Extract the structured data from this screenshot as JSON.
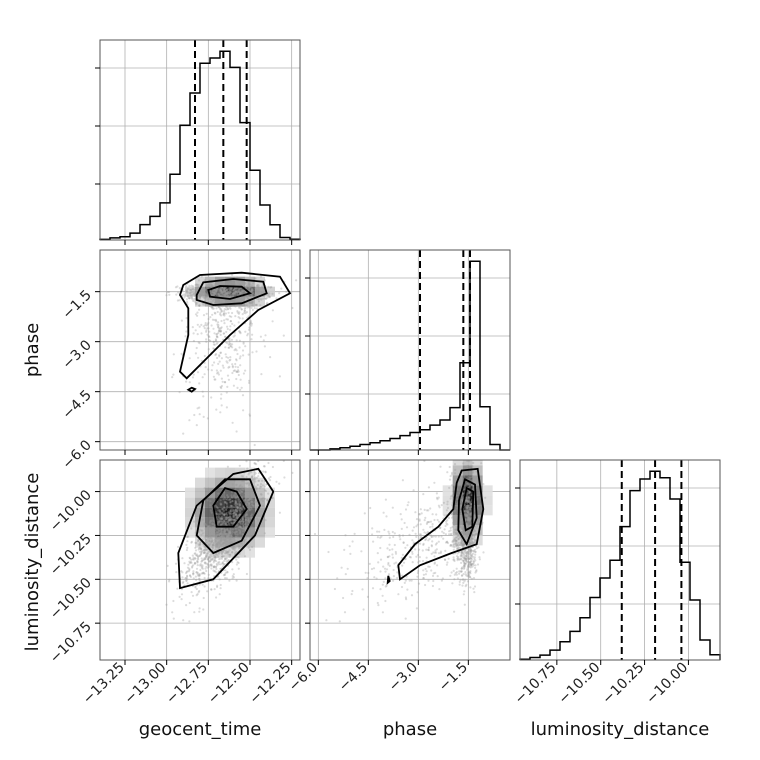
{
  "chart_data": {
    "type": "corner",
    "parameters": [
      "geocent_time",
      "phase",
      "luminosity_distance"
    ],
    "ranges": {
      "geocent_time": [
        -13.4,
        -12.2
      ],
      "phase": [
        -6.25,
        -0.25
      ],
      "luminosity_distance": [
        -10.96,
        -9.82
      ]
    },
    "ticks": {
      "geocent_time": [
        -13.25,
        -13.0,
        -12.75,
        -12.5,
        -12.25
      ],
      "phase": [
        -6.0,
        -4.5,
        -3.0,
        -1.5
      ],
      "luminosity_distance": [
        -10.75,
        -10.5,
        -10.25,
        -10.0
      ]
    },
    "tick_labels": {
      "geocent_time": [
        "−13.25",
        "−13.00",
        "−12.75",
        "−12.50",
        "−12.25"
      ],
      "phase": [
        "−6.0",
        "−4.5",
        "−3.0",
        "−1.5"
      ],
      "luminosity_distance": [
        "−10.75",
        "−10.50",
        "−10.25",
        "−10.00"
      ]
    },
    "axis_labels": {
      "x": [
        "geocent_time",
        "phase",
        "luminosity_distance"
      ],
      "y": [
        "phase",
        "luminosity_distance"
      ]
    },
    "quantiles": {
      "geocent_time": [
        -12.83,
        -12.66,
        -12.52
      ],
      "phase": [
        -2.95,
        -1.65,
        -1.45
      ],
      "luminosity_distance": [
        -10.38,
        -10.19,
        -10.04
      ]
    },
    "histograms": {
      "geocent_time": {
        "edges": [
          -13.4,
          -13.34,
          -13.28,
          -13.22,
          -13.16,
          -13.1,
          -13.04,
          -12.98,
          -12.92,
          -12.86,
          -12.8,
          -12.74,
          -12.68,
          -12.62,
          -12.56,
          -12.5,
          -12.44,
          -12.38,
          -12.32,
          -12.26,
          -12.2
        ],
        "counts": [
          0.3,
          1.0,
          1.6,
          3.3,
          7.4,
          11.3,
          17.8,
          31.5,
          55.0,
          70.5,
          84.8,
          87.3,
          90.5,
          82.8,
          56.3,
          33.5,
          16.8,
          7.3,
          1.2,
          0.4
        ]
      },
      "phase": {
        "edges": [
          -6.25,
          -5.95,
          -5.65,
          -5.35,
          -5.05,
          -4.75,
          -4.45,
          -4.15,
          -3.85,
          -3.55,
          -3.25,
          -2.95,
          -2.65,
          -2.35,
          -2.05,
          -1.75,
          -1.45,
          -1.15,
          -0.85,
          -0.55,
          -0.25
        ],
        "counts": [
          0.0,
          0.0,
          0.5,
          1.0,
          1.7,
          2.5,
          3.3,
          4.2,
          5.2,
          6.5,
          7.9,
          9.1,
          11.2,
          13.5,
          19.1,
          39.3,
          85.0,
          19.5,
          2.5,
          0.0
        ]
      },
      "luminosity_distance": {
        "edges": [
          -10.96,
          -10.903,
          -10.846,
          -10.789,
          -10.732,
          -10.675,
          -10.618,
          -10.561,
          -10.504,
          -10.447,
          -10.39,
          -10.333,
          -10.276,
          -10.219,
          -10.162,
          -10.105,
          -10.048,
          -9.991,
          -9.934,
          -9.877,
          -9.82
        ],
        "counts": [
          0.3,
          1.0,
          2.0,
          4.0,
          7.4,
          11.6,
          17.1,
          25.3,
          33.2,
          40.4,
          54.0,
          68.6,
          73.3,
          76.4,
          73.8,
          65.2,
          39.6,
          24.3,
          8.1,
          2.1
        ]
      }
    },
    "density_peaks": {
      "phase_vs_geocent_time": [
        {
          "x": -12.62,
          "y": -1.5
        }
      ],
      "luminosity_distance_vs_geocent_time": [
        {
          "x": -12.62,
          "y": -10.12
        }
      ],
      "luminosity_distance_vs_phase": [
        {
          "x": -1.52,
          "y": -10.05
        }
      ]
    },
    "grid": true
  }
}
